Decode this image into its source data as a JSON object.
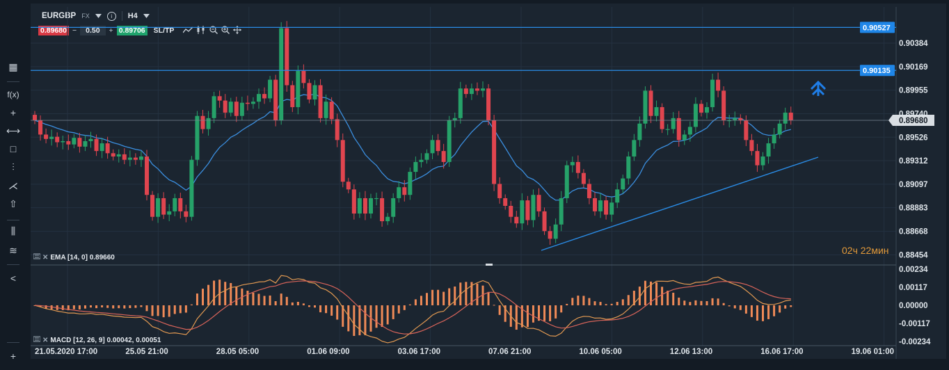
{
  "toolbar": {
    "symbol": "EURGBP",
    "market": "FX",
    "info_glyph": "i",
    "timeframe": "H4",
    "sell_price": "0.89680",
    "minus": "−",
    "quantity": "0.50",
    "plus": "+",
    "buy_price": "0.89706",
    "sltp": "SL/TP"
  },
  "left_toolbar": [
    {
      "name": "layout-grid-icon",
      "glyph": "▦"
    },
    {
      "name": "function-icon",
      "glyph": "f(x)"
    },
    {
      "name": "crosshair-icon",
      "glyph": "+"
    },
    {
      "name": "horizontal-line-icon",
      "glyph": "⟷"
    },
    {
      "name": "rectangle-icon",
      "glyph": "□"
    },
    {
      "name": "fibonacci-icon",
      "glyph": "⫶"
    },
    {
      "name": "pitchfork-icon",
      "glyph": "⋌"
    },
    {
      "name": "arrow-up-icon",
      "glyph": "⇧"
    },
    {
      "name": "indicators-icon",
      "glyph": "⫼"
    },
    {
      "name": "layers-icon",
      "glyph": "≋"
    },
    {
      "name": "share-icon",
      "glyph": "<"
    },
    {
      "name": "add-icon",
      "glyph": "+"
    }
  ],
  "price_axis": [
    "0.90384",
    "0.90169",
    "0.89955",
    "0.89740",
    "0.89526",
    "0.89312",
    "0.89097",
    "0.88883",
    "0.88668",
    "0.88454"
  ],
  "price_tags": {
    "upper_line": "0.90527",
    "lower_line": "0.90135",
    "current": "0.89680"
  },
  "countdown": {
    "hours": "02",
    "hours_unit": "ч",
    "minutes": "22",
    "minutes_unit": "мин"
  },
  "ema_label": "EMA [14, 0] 0.89660",
  "macd_label": "MACD [12, 26, 9] 0.00042, 0.00051",
  "macd_axis": [
    "0.00234",
    "0.00117",
    "0.00000",
    "-0.00117",
    "-0.00234"
  ],
  "time_axis": [
    "21.05.2020 17:00",
    "25.05 21:00",
    "28.05 05:00",
    "01.06 09:00",
    "03.06 17:00",
    "07.06 21:00",
    "10.06 05:00",
    "12.06 13:00",
    "16.06 17:00",
    "19.06 01:00"
  ],
  "colors": {
    "bull": "#26a269",
    "bear": "#e0454f",
    "ema": "#3b8fe0",
    "line": "#2a8ce6",
    "macd_hist": "#ef8a57",
    "macd_line": "#e39a52",
    "signal_line": "#d9645a",
    "countdown": "#e39a3a"
  },
  "chart_data": {
    "type": "candlestick",
    "symbol": "EURGBP",
    "timeframe": "H4",
    "horizontal_levels": [
      0.90527,
      0.90135
    ],
    "current_price": 0.8968,
    "closes": [
      0.8968,
      0.8955,
      0.8951,
      0.8953,
      0.8948,
      0.8949,
      0.8946,
      0.8952,
      0.8944,
      0.8949,
      0.8951,
      0.894,
      0.8947,
      0.8938,
      0.8935,
      0.8937,
      0.8932,
      0.8934,
      0.8932,
      0.8935,
      0.89,
      0.888,
      0.8897,
      0.8882,
      0.8885,
      0.8897,
      0.8885,
      0.888,
      0.8932,
      0.8972,
      0.896,
      0.897,
      0.899,
      0.8986,
      0.8975,
      0.8985,
      0.8972,
      0.8984,
      0.8983,
      0.8985,
      0.8992,
      0.8988,
      0.9005,
      0.8968,
      0.9052,
      0.9,
      0.898,
      0.9013,
      0.9002,
      0.8987,
      0.9,
      0.897,
      0.8985,
      0.8969,
      0.895,
      0.8912,
      0.8905,
      0.8883,
      0.8897,
      0.8883,
      0.8897,
      0.8897,
      0.8876,
      0.888,
      0.8897,
      0.8907,
      0.89,
      0.8921,
      0.893,
      0.8932,
      0.8938,
      0.895,
      0.894,
      0.893,
      0.8968,
      0.897,
      0.8997,
      0.8992,
      0.8997,
      0.8995,
      0.8997,
      0.8968,
      0.891,
      0.8897,
      0.889,
      0.888,
      0.8874,
      0.8895,
      0.8877,
      0.89,
      0.8885,
      0.8867,
      0.886,
      0.8873,
      0.8897,
      0.8927,
      0.893,
      0.892,
      0.891,
      0.8897,
      0.8885,
      0.8895,
      0.8882,
      0.8893,
      0.8905,
      0.8915,
      0.8935,
      0.895,
      0.8965,
      0.8995,
      0.8972,
      0.898,
      0.896,
      0.896,
      0.897,
      0.895,
      0.8955,
      0.8962,
      0.8983,
      0.8975,
      0.898,
      0.9005,
      0.8995,
      0.8968,
      0.8968,
      0.897,
      0.8968,
      0.895,
      0.894,
      0.8927,
      0.8935,
      0.8947,
      0.8955,
      0.8965,
      0.8975,
      0.8968
    ]
  }
}
